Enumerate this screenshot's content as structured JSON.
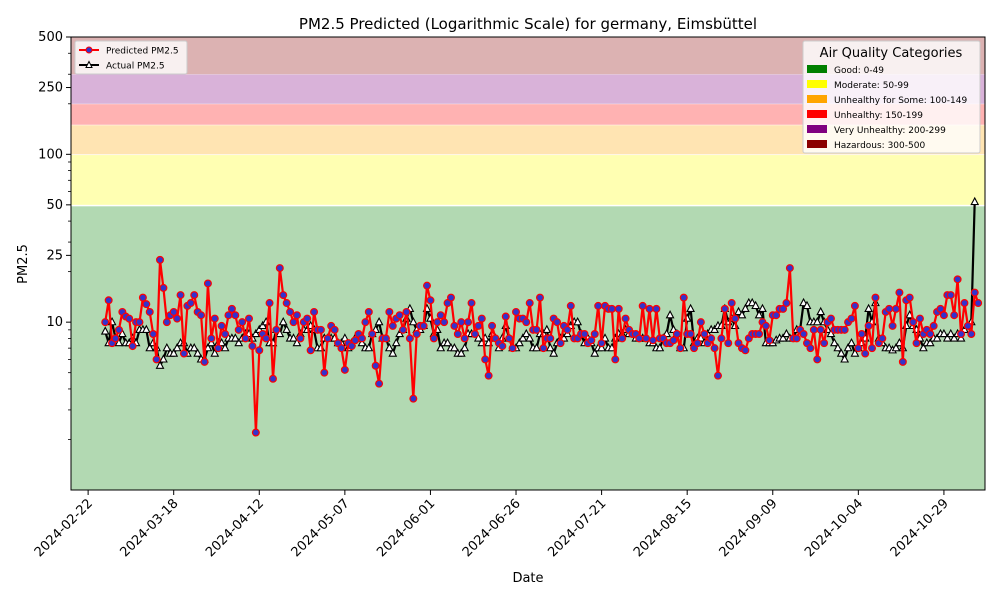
{
  "chart_data": {
    "type": "line",
    "title": "PM2.5 Predicted (Logarithmic Scale) for germany, Eimsbüttel",
    "xlabel": "Date",
    "ylabel": "PM2.5",
    "y_scale": "log",
    "ylim": [
      1,
      500
    ],
    "xlim": [
      "2024-02-17",
      "2024-11-10"
    ],
    "y_ticks": [
      10,
      25,
      50,
      100,
      250,
      500
    ],
    "y_tick_labels": [
      "10",
      "25",
      "50",
      "100",
      "250",
      "500"
    ],
    "x_tick_labels": [
      "2024-02-22",
      "2024-03-18",
      "2024-04-12",
      "2024-05-07",
      "2024-06-01",
      "2024-06-26",
      "2024-07-21",
      "2024-08-15",
      "2024-09-09",
      "2024-10-04",
      "2024-10-29"
    ],
    "bands": [
      {
        "label": "Good: 0-49",
        "from": 0,
        "to": 49,
        "color": "#008000"
      },
      {
        "label": "Moderate: 50-99",
        "from": 50,
        "to": 99,
        "color": "#ffff00"
      },
      {
        "label": "Unhealthy for Some: 100-149",
        "from": 100,
        "to": 149,
        "color": "#ffa500"
      },
      {
        "label": "Unhealthy: 150-199",
        "from": 150,
        "to": 199,
        "color": "#ff0000"
      },
      {
        "label": "Very Unhealthy: 200-299",
        "from": 200,
        "to": 299,
        "color": "#800080"
      },
      {
        "label": "Hazardous: 300-500",
        "from": 300,
        "to": 500,
        "color": "#8b0000"
      }
    ],
    "category_legend_title": "Air Quality Categories",
    "x_start_date": "2024-02-27",
    "day_step": 1,
    "series": [
      {
        "name": "Predicted PM2.5",
        "color": "#ff0000",
        "marker_face": "#3333cc",
        "values": [
          10.0,
          13.5,
          7.5,
          8.0,
          9.0,
          11.5,
          10.8,
          10.5,
          7.2,
          10.0,
          10.0,
          14.0,
          12.8,
          11.5,
          8.5,
          6.0,
          23.5,
          16.0,
          10.0,
          11.0,
          11.5,
          10.5,
          14.5,
          6.5,
          12.5,
          13.0,
          14.5,
          11.5,
          11.0,
          5.8,
          17.0,
          8.0,
          10.5,
          7.0,
          9.5,
          8.5,
          11.0,
          12.0,
          11.0,
          9.0,
          10.0,
          8.0,
          10.5,
          7.2,
          2.2,
          6.8,
          8.5,
          8.0,
          13.0,
          4.6,
          9.0,
          21.0,
          14.5,
          13.0,
          11.5,
          10.0,
          11.0,
          8.0,
          10.0,
          10.5,
          6.8,
          11.5,
          9.0,
          9.0,
          5.0,
          8.0,
          9.5,
          9.0,
          7.5,
          7.0,
          5.2,
          7.5,
          7.2,
          7.8,
          8.5,
          8.0,
          10.0,
          11.5,
          8.5,
          5.5,
          4.3,
          8.0,
          8.0,
          11.5,
          9.5,
          10.5,
          11.0,
          9.0,
          11.5,
          8.0,
          3.5,
          8.5,
          9.5,
          9.5,
          16.5,
          13.5,
          8.0,
          10.0,
          11.0,
          10.0,
          13.0,
          14.0,
          9.5,
          8.5,
          10.0,
          8.0,
          10.0,
          13.0,
          8.5,
          9.5,
          10.5,
          6.0,
          4.8,
          9.5,
          8.0,
          7.5,
          7.2,
          10.8,
          8.0,
          7.0,
          11.5,
          10.5,
          10.5,
          10.0,
          13.0,
          9.0,
          9.0,
          14.0,
          7.0,
          8.0,
          8.0,
          10.5,
          10.0,
          7.5,
          9.5,
          9.0,
          12.5,
          8.0,
          8.0,
          8.5,
          8.5,
          7.5,
          7.8,
          8.5,
          12.5,
          7.5,
          12.5,
          12.0,
          12.0,
          6.0,
          12.0,
          8.0,
          10.5,
          9.0,
          8.5,
          8.5,
          8.0,
          12.5,
          8.0,
          12.0,
          7.8,
          12.0,
          8.0,
          8.0,
          7.5,
          7.5,
          7.8,
          8.5,
          7.0,
          14.0,
          8.5,
          8.5,
          7.0,
          7.5,
          10.0,
          8.5,
          7.5,
          8.0,
          7.0,
          4.8,
          8.0,
          12.0,
          7.5,
          13.0,
          10.5,
          7.5,
          7.0,
          6.8,
          8.0,
          8.5,
          8.5,
          8.5,
          10.0,
          9.5,
          7.8,
          11.0,
          11.0,
          12.0,
          12.0,
          13.0,
          21.0,
          8.0,
          8.0,
          9.0,
          8.5,
          7.5,
          7.0,
          9.0,
          6.0,
          9.0,
          7.5,
          10.0,
          10.5,
          9.0,
          9.0,
          9.0,
          9.0,
          10.0,
          10.5,
          12.5,
          7.0,
          8.5,
          6.5,
          9.5,
          7.0,
          14.0,
          7.5,
          8.0,
          11.5,
          12.0,
          9.5,
          12.0,
          15.0,
          5.8,
          13.5,
          14.0,
          10.0,
          7.5,
          10.5,
          8.5,
          9.0,
          8.5,
          9.5,
          11.5,
          12.0,
          11.0,
          14.5,
          14.5,
          11.0,
          18.0,
          8.5,
          13.0,
          9.5,
          8.5,
          15.0,
          13.0
        ],
        "last_value_label": "13.0"
      },
      {
        "name": "Actual PM2.5",
        "color": "#000000",
        "marker_face": "#ffffff",
        "values": [
          8.8,
          7.5,
          10.0,
          8.0,
          7.5,
          8.5,
          7.5,
          7.5,
          8.0,
          7.5,
          9.0,
          9.0,
          9.0,
          7.0,
          7.5,
          7.0,
          5.5,
          6.0,
          7.0,
          6.5,
          6.5,
          7.0,
          7.5,
          7.5,
          6.5,
          7.0,
          7.0,
          6.5,
          6.0,
          6.0,
          7.0,
          7.5,
          6.5,
          7.5,
          7.5,
          7.0,
          8.0,
          8.0,
          8.0,
          7.5,
          8.0,
          8.5,
          8.5,
          8.0,
          8.5,
          9.0,
          9.5,
          10.0,
          7.5,
          7.5,
          9.0,
          8.5,
          10.0,
          9.0,
          8.0,
          8.0,
          7.5,
          8.5,
          9.0,
          9.0,
          9.5,
          9.0,
          7.0,
          7.0,
          8.0,
          8.0,
          8.0,
          8.0,
          7.5,
          7.5,
          8.0,
          7.0,
          7.5,
          8.0,
          8.0,
          7.5,
          7.0,
          7.0,
          8.5,
          9.0,
          10.0,
          8.0,
          8.0,
          7.0,
          6.5,
          7.5,
          8.5,
          9.0,
          10.5,
          12.0,
          10.0,
          9.0,
          9.0,
          9.5,
          12.0,
          10.5,
          8.5,
          9.0,
          7.0,
          7.5,
          7.5,
          7.0,
          7.0,
          6.5,
          6.5,
          7.0,
          8.5,
          8.5,
          8.5,
          8.0,
          7.5,
          8.0,
          7.5,
          8.5,
          8.0,
          7.0,
          8.0,
          9.5,
          8.0,
          7.0,
          7.0,
          7.5,
          8.0,
          8.5,
          8.0,
          7.0,
          7.0,
          8.5,
          8.5,
          9.0,
          7.0,
          6.5,
          7.5,
          8.0,
          8.0,
          8.5,
          9.5,
          10.0,
          10.0,
          8.5,
          7.5,
          8.0,
          7.5,
          6.5,
          7.0,
          7.0,
          8.0,
          7.0,
          7.0,
          8.0,
          8.5,
          8.5,
          9.0,
          8.5,
          8.5,
          8.0,
          8.0,
          8.0,
          8.0,
          7.5,
          7.5,
          7.0,
          7.0,
          8.0,
          8.5,
          11.0,
          9.0,
          8.5,
          7.0,
          7.0,
          10.5,
          12.0,
          7.5,
          8.0,
          8.0,
          7.5,
          8.5,
          9.0,
          9.0,
          9.5,
          9.5,
          12.0,
          10.0,
          10.5,
          9.5,
          11.5,
          11.0,
          12.0,
          13.0,
          13.0,
          12.5,
          11.0,
          12.0,
          7.5,
          7.5,
          7.5,
          7.8,
          8.0,
          8.0,
          8.5,
          8.0,
          8.0,
          9.0,
          9.0,
          13.0,
          12.5,
          10.0,
          10.0,
          10.0,
          11.5,
          10.0,
          9.0,
          8.5,
          7.5,
          7.0,
          6.5,
          6.0,
          7.0,
          7.5,
          6.5,
          7.0,
          7.5,
          8.0,
          12.0,
          10.0,
          13.0,
          8.0,
          7.5,
          7.0,
          7.0,
          6.8,
          7.0,
          7.5,
          7.0,
          9.5,
          11.0,
          9.5,
          9.0,
          8.0,
          7.0,
          7.5,
          7.5,
          8.0,
          8.0,
          8.5,
          8.5,
          8.0,
          8.5,
          8.0,
          8.5,
          8.0,
          9.0,
          9.5,
          10.0,
          52.0
        ],
        "last_value_label": "52.0"
      }
    ]
  }
}
